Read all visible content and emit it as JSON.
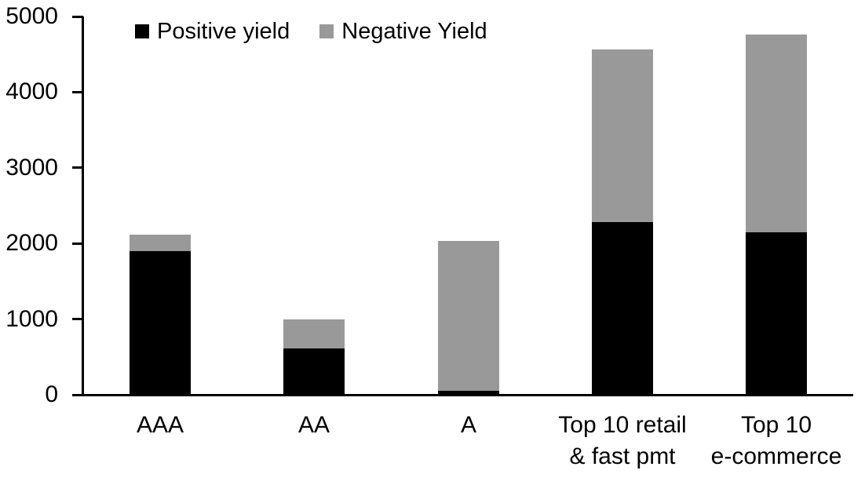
{
  "chart_data": {
    "type": "bar",
    "stacked": true,
    "title": "",
    "xlabel": "",
    "ylabel": "",
    "categories": [
      [
        "AAA"
      ],
      [
        "AA"
      ],
      [
        "A"
      ],
      [
        "Top 10 retail",
        "& fast pmt"
      ],
      [
        "Top 10",
        "e-commerce"
      ]
    ],
    "series": [
      {
        "name": "Positive yield",
        "color": "#000000",
        "values": [
          1900,
          620,
          50,
          2280,
          2150
        ]
      },
      {
        "name": "Negative Yield",
        "color": "#999999",
        "values": [
          220,
          380,
          1980,
          2280,
          2610
        ]
      }
    ],
    "totals": [
      2120,
      1000,
      2030,
      4560,
      4760
    ],
    "ylim": [
      0,
      5000
    ],
    "yticks": [
      0,
      1000,
      2000,
      3000,
      4000,
      5000
    ],
    "grid": false,
    "legend_position": "top"
  },
  "colors": {
    "axis": "#000000",
    "background": "#ffffff",
    "text": "#000000"
  }
}
